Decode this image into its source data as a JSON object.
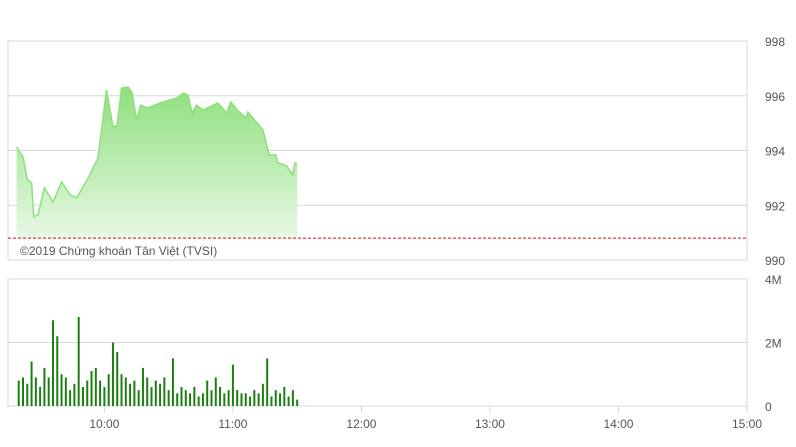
{
  "watermark": "©2019 Chứng khoán Tân Việt (TVSI)",
  "colors": {
    "line": "#8ee07e",
    "fill_top": "#8ee07e",
    "fill_bottom": "#e8f8e4",
    "volume": "#1e7d12",
    "reference": "#c0121b",
    "grid": "#d8d8d8",
    "axis_text": "#555555"
  },
  "chart_data": [
    {
      "type": "area",
      "xlim": [
        "09:15",
        "15:00"
      ],
      "ylim": [
        990,
        998
      ],
      "yticks": [
        "998",
        "996",
        "994",
        "992",
        "990"
      ],
      "reference_line": 990.8,
      "grid": true,
      "points": [
        [
          "09:19",
          994.13
        ],
        [
          "09:22",
          993.77
        ],
        [
          "09:24",
          992.93
        ],
        [
          "09:26",
          992.82
        ],
        [
          "09:27",
          991.58
        ],
        [
          "09:29",
          991.65
        ],
        [
          "09:32",
          992.64
        ],
        [
          "09:36",
          992.12
        ],
        [
          "09:40",
          992.85
        ],
        [
          "09:44",
          992.38
        ],
        [
          "09:47",
          992.27
        ],
        [
          "09:52",
          992.93
        ],
        [
          "09:57",
          993.73
        ],
        [
          "10:01",
          996.21
        ],
        [
          "10:04",
          994.86
        ],
        [
          "10:06",
          994.93
        ],
        [
          "10:08",
          996.28
        ],
        [
          "10:11",
          996.32
        ],
        [
          "10:13",
          996.1
        ],
        [
          "10:15",
          995.12
        ],
        [
          "10:17",
          995.66
        ],
        [
          "10:20",
          995.55
        ],
        [
          "10:26",
          995.74
        ],
        [
          "10:34",
          995.92
        ],
        [
          "10:37",
          996.1
        ],
        [
          "10:39",
          996.03
        ],
        [
          "10:41",
          995.37
        ],
        [
          "10:43",
          995.66
        ],
        [
          "10:46",
          995.48
        ],
        [
          "10:53",
          995.74
        ],
        [
          "10:57",
          995.37
        ],
        [
          "10:59",
          995.77
        ],
        [
          "11:02",
          995.48
        ],
        [
          "11:06",
          995.19
        ],
        [
          "11:07",
          995.41
        ],
        [
          "11:14",
          994.75
        ],
        [
          "11:17",
          993.84
        ],
        [
          "11:20",
          993.84
        ],
        [
          "11:21",
          993.55
        ],
        [
          "11:25",
          993.44
        ],
        [
          "11:28",
          993.11
        ],
        [
          "11:29",
          993.55
        ],
        [
          "11:30",
          993.47
        ]
      ]
    },
    {
      "type": "bar",
      "xlim": [
        "09:15",
        "15:00"
      ],
      "ylim": [
        0,
        4
      ],
      "yticks": [
        "4M",
        "2M",
        "0"
      ],
      "xticks": [
        "10:00",
        "11:00",
        "12:00",
        "13:00",
        "14:00",
        "15:00"
      ],
      "unit": "M",
      "bars": [
        [
          "09:20",
          0.8
        ],
        [
          "09:22",
          0.9
        ],
        [
          "09:24",
          0.7
        ],
        [
          "09:26",
          1.4
        ],
        [
          "09:28",
          0.9
        ],
        [
          "09:30",
          0.6
        ],
        [
          "09:32",
          1.2
        ],
        [
          "09:34",
          0.9
        ],
        [
          "09:36",
          2.7
        ],
        [
          "09:38",
          2.2
        ],
        [
          "09:40",
          1.0
        ],
        [
          "09:42",
          0.9
        ],
        [
          "09:44",
          0.5
        ],
        [
          "09:46",
          0.7
        ],
        [
          "09:48",
          2.8
        ],
        [
          "09:50",
          0.6
        ],
        [
          "09:52",
          0.8
        ],
        [
          "09:54",
          1.1
        ],
        [
          "09:56",
          1.2
        ],
        [
          "09:58",
          0.8
        ],
        [
          "10:00",
          0.6
        ],
        [
          "10:02",
          1.0
        ],
        [
          "10:04",
          2.0
        ],
        [
          "10:06",
          1.7
        ],
        [
          "10:08",
          1.0
        ],
        [
          "10:10",
          0.9
        ],
        [
          "10:12",
          0.7
        ],
        [
          "10:14",
          0.8
        ],
        [
          "10:16",
          0.5
        ],
        [
          "10:18",
          1.2
        ],
        [
          "10:20",
          0.9
        ],
        [
          "10:22",
          0.6
        ],
        [
          "10:24",
          0.8
        ],
        [
          "10:26",
          0.7
        ],
        [
          "10:28",
          0.9
        ],
        [
          "10:30",
          0.5
        ],
        [
          "10:32",
          1.5
        ],
        [
          "10:34",
          0.4
        ],
        [
          "10:36",
          0.6
        ],
        [
          "10:38",
          0.5
        ],
        [
          "10:40",
          0.4
        ],
        [
          "10:42",
          0.6
        ],
        [
          "10:44",
          0.3
        ],
        [
          "10:46",
          0.4
        ],
        [
          "10:48",
          0.8
        ],
        [
          "10:50",
          0.5
        ],
        [
          "10:52",
          0.9
        ],
        [
          "10:54",
          0.6
        ],
        [
          "10:56",
          0.4
        ],
        [
          "10:58",
          0.5
        ],
        [
          "11:00",
          1.3
        ],
        [
          "11:02",
          0.5
        ],
        [
          "11:04",
          0.4
        ],
        [
          "11:06",
          0.4
        ],
        [
          "11:08",
          0.3
        ],
        [
          "11:10",
          0.5
        ],
        [
          "11:12",
          0.4
        ],
        [
          "11:14",
          0.7
        ],
        [
          "11:16",
          1.5
        ],
        [
          "11:18",
          0.3
        ],
        [
          "11:20",
          0.5
        ],
        [
          "11:22",
          0.4
        ],
        [
          "11:24",
          0.6
        ],
        [
          "11:26",
          0.3
        ],
        [
          "11:28",
          0.5
        ],
        [
          "11:30",
          0.2
        ]
      ]
    }
  ]
}
